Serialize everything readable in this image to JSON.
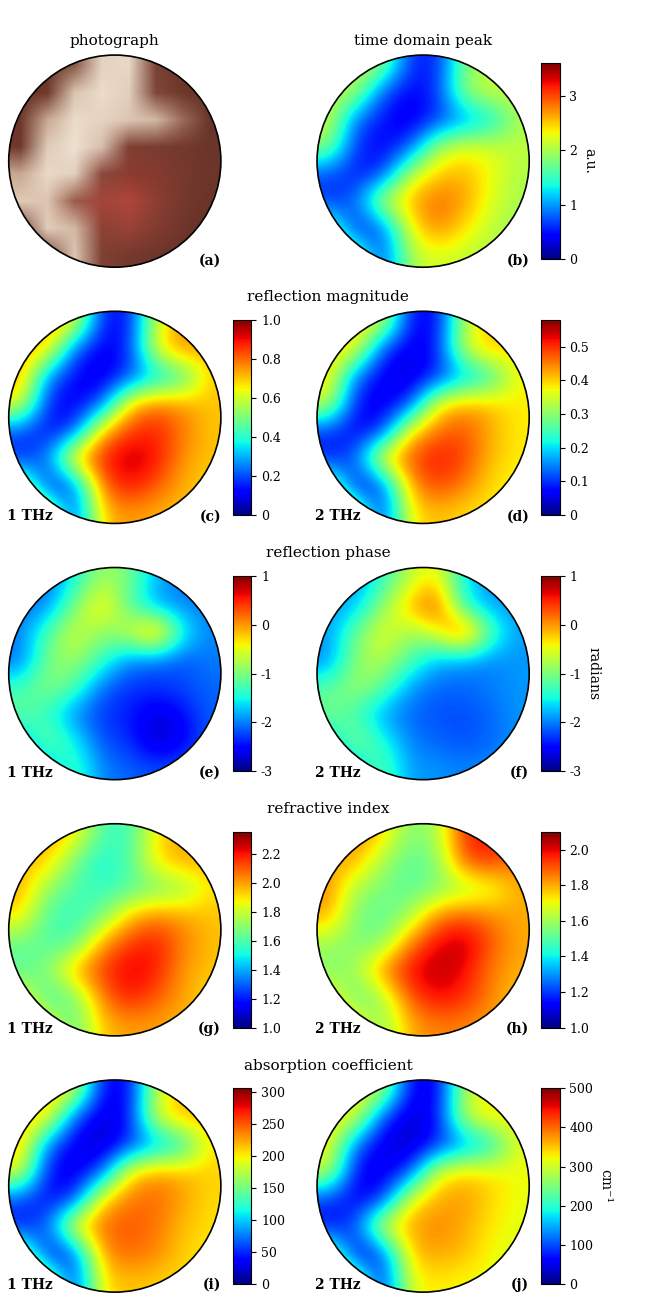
{
  "chart_data": [
    {
      "type": "image",
      "title": "photograph",
      "panel": "(a)",
      "cells": [
        [
          "#5a2e24",
          "#6b3529",
          "#8a5a48",
          "#e4d3c0",
          "#e8d8c6",
          "#7a4234",
          "#6a3428",
          "#5c2f25"
        ],
        [
          "#633226",
          "#70392b",
          "#d9c4b0",
          "#ecdccb",
          "#e2cfbc",
          "#80473a",
          "#6e3729",
          "#61302a"
        ],
        [
          "#6d362a",
          "#c9a892",
          "#eadbc9",
          "#e6d3c1",
          "#dcc6b3",
          "#d2b8a4",
          "#9a6a58",
          "#68332a"
        ],
        [
          "#70392c",
          "#e0ccb8",
          "#eee0d0",
          "#d8bfae",
          "#7e4032",
          "#7a3d30",
          "#73392d",
          "#6a352a"
        ],
        [
          "#c8a890",
          "#ead9c7",
          "#e3cfbd",
          "#8a4a3b",
          "#8e3a30",
          "#853a2f",
          "#76392d",
          "#6c362a"
        ],
        [
          "#e0cbb7",
          "#dcc5b1",
          "#9a5c4a",
          "#a4443a",
          "#b0463a",
          "#8e3e32",
          "#75382c",
          "#6a3429"
        ],
        [
          "#7c4638",
          "#e2cdb9",
          "#d3b9a4",
          "#8c4234",
          "#9a4236",
          "#823c30",
          "#70362b",
          "#633027"
        ],
        [
          "#5e2f25",
          "#7a4436",
          "#dcc7b3",
          "#7e4133",
          "#77392d",
          "#6e352a",
          "#673228",
          "#5c2d24"
        ]
      ]
    },
    {
      "type": "heatmap",
      "title": "time domain peak",
      "panel": "(b)",
      "colorbar_range": [
        0,
        3.6
      ],
      "colorbar_ticks": [
        0,
        1,
        2,
        3
      ],
      "colorbar_label": "a.u.",
      "cells": [
        [
          2.0,
          2.2,
          1.9,
          0.6,
          0.5,
          1.8,
          2.1,
          2.0
        ],
        [
          2.1,
          2.0,
          0.7,
          0.4,
          0.6,
          1.9,
          2.2,
          2.1
        ],
        [
          2.2,
          0.8,
          0.5,
          0.3,
          0.6,
          0.9,
          1.2,
          2.0
        ],
        [
          1.9,
          0.6,
          0.4,
          0.7,
          2.0,
          2.3,
          2.2,
          2.1
        ],
        [
          0.7,
          0.5,
          0.6,
          2.1,
          2.5,
          2.6,
          2.3,
          2.0
        ],
        [
          0.6,
          0.8,
          2.2,
          2.6,
          2.9,
          2.7,
          2.2,
          2.0
        ],
        [
          1.8,
          0.5,
          0.7,
          2.3,
          2.8,
          2.4,
          2.1,
          1.9
        ],
        [
          2.0,
          1.9,
          0.6,
          2.0,
          2.2,
          2.1,
          2.0,
          2.0
        ]
      ]
    },
    {
      "type": "heatmap",
      "title": "reflection magnitude",
      "panel": "(c)",
      "frequency": "1 THz",
      "colorbar_range": [
        0,
        1.0
      ],
      "colorbar_ticks": [
        0,
        0.2,
        0.4,
        0.6,
        0.8,
        1.0
      ],
      "cells": [
        [
          0.7,
          0.75,
          0.65,
          0.15,
          0.12,
          0.6,
          0.75,
          0.7
        ],
        [
          0.72,
          0.7,
          0.2,
          0.1,
          0.15,
          0.65,
          0.78,
          0.72
        ],
        [
          0.75,
          0.25,
          0.12,
          0.08,
          0.18,
          0.3,
          0.4,
          0.7
        ],
        [
          0.65,
          0.15,
          0.1,
          0.2,
          0.7,
          0.8,
          0.75,
          0.7
        ],
        [
          0.2,
          0.12,
          0.18,
          0.72,
          0.85,
          0.88,
          0.78,
          0.7
        ],
        [
          0.15,
          0.25,
          0.75,
          0.88,
          0.95,
          0.9,
          0.75,
          0.7
        ],
        [
          0.6,
          0.12,
          0.2,
          0.8,
          0.9,
          0.82,
          0.72,
          0.68
        ],
        [
          0.7,
          0.65,
          0.15,
          0.7,
          0.75,
          0.72,
          0.7,
          0.7
        ]
      ]
    },
    {
      "type": "heatmap",
      "panel": "(d)",
      "frequency": "2 THz",
      "colorbar_range": [
        0,
        0.58
      ],
      "colorbar_ticks": [
        0,
        0.1,
        0.2,
        0.3,
        0.4,
        0.5
      ],
      "cells": [
        [
          0.38,
          0.4,
          0.35,
          0.08,
          0.06,
          0.33,
          0.41,
          0.38
        ],
        [
          0.39,
          0.38,
          0.1,
          0.05,
          0.08,
          0.35,
          0.42,
          0.39
        ],
        [
          0.4,
          0.13,
          0.06,
          0.04,
          0.09,
          0.16,
          0.22,
          0.38
        ],
        [
          0.35,
          0.08,
          0.05,
          0.1,
          0.38,
          0.43,
          0.41,
          0.38
        ],
        [
          0.1,
          0.06,
          0.09,
          0.39,
          0.46,
          0.48,
          0.42,
          0.38
        ],
        [
          0.08,
          0.13,
          0.41,
          0.48,
          0.52,
          0.49,
          0.41,
          0.38
        ],
        [
          0.33,
          0.06,
          0.1,
          0.43,
          0.49,
          0.45,
          0.39,
          0.37
        ],
        [
          0.38,
          0.35,
          0.08,
          0.38,
          0.41,
          0.39,
          0.38,
          0.38
        ]
      ]
    },
    {
      "type": "heatmap",
      "title": "reflection phase",
      "panel": "(e)",
      "frequency": "1 THz",
      "colorbar_range": [
        -3,
        1
      ],
      "colorbar_ticks": [
        1,
        0,
        -1,
        -2,
        -3
      ],
      "cells": [
        [
          -2.0,
          -2.1,
          -1.5,
          -0.8,
          -1.0,
          -1.8,
          -2.0,
          -2.1
        ],
        [
          -2.1,
          -2.0,
          -1.0,
          -0.2,
          -1.2,
          -1.9,
          -2.0,
          -2.0
        ],
        [
          -2.0,
          -1.2,
          -0.5,
          -1.0,
          -0.6,
          0.3,
          -1.5,
          -2.0
        ],
        [
          -2.1,
          -1.0,
          -0.8,
          -1.3,
          -2.0,
          -2.1,
          -2.2,
          -2.0
        ],
        [
          -1.3,
          -0.9,
          -1.2,
          -2.1,
          -2.3,
          -2.3,
          -2.2,
          -2.1
        ],
        [
          -1.1,
          -1.4,
          -2.0,
          -2.3,
          -2.4,
          -2.7,
          -2.5,
          -2.1
        ],
        [
          -1.8,
          -1.0,
          -1.5,
          -2.2,
          -2.3,
          -2.8,
          -2.6,
          -2.1
        ],
        [
          -2.0,
          -1.9,
          -1.2,
          -2.0,
          -2.1,
          -2.2,
          -2.1,
          -2.0
        ]
      ]
    },
    {
      "type": "heatmap",
      "panel": "(f)",
      "frequency": "2 THz",
      "colorbar_range": [
        -3,
        1
      ],
      "colorbar_ticks": [
        1,
        0,
        -1,
        -2,
        -3
      ],
      "colorbar_label": "radians",
      "cells": [
        [
          -1.9,
          -1.9,
          -1.4,
          -0.7,
          -0.3,
          -1.6,
          -1.9,
          -1.9
        ],
        [
          -1.9,
          -1.8,
          -0.9,
          -0.1,
          0.4,
          -1.5,
          -1.9,
          -1.9
        ],
        [
          -1.9,
          -1.1,
          -0.4,
          -0.9,
          -0.5,
          0.5,
          -1.2,
          -1.9
        ],
        [
          -2.0,
          -0.9,
          -0.7,
          -1.2,
          -1.8,
          -1.9,
          -2.0,
          -1.9
        ],
        [
          -1.2,
          -0.8,
          -1.1,
          -1.9,
          -2.1,
          -2.1,
          -2.0,
          -1.9
        ],
        [
          -1.0,
          -1.3,
          -1.9,
          -2.1,
          -2.2,
          -2.2,
          -2.1,
          -1.9
        ],
        [
          -1.7,
          -0.9,
          -1.4,
          -2.0,
          -2.1,
          -2.2,
          -2.1,
          -1.9
        ],
        [
          -1.9,
          -1.8,
          -1.1,
          -1.9,
          -1.9,
          -2.0,
          -1.9,
          -1.9
        ]
      ]
    },
    {
      "type": "heatmap",
      "title": "refractive index",
      "panel": "(g)",
      "frequency": "1 THz",
      "colorbar_range": [
        1.0,
        2.35
      ],
      "colorbar_ticks": [
        1.0,
        1.2,
        1.4,
        1.6,
        1.8,
        2.0,
        2.2
      ],
      "cells": [
        [
          1.95,
          2.0,
          1.9,
          1.6,
          1.55,
          1.9,
          2.0,
          1.95
        ],
        [
          1.95,
          1.95,
          1.65,
          1.5,
          1.6,
          1.9,
          2.0,
          1.95
        ],
        [
          2.0,
          1.7,
          1.6,
          1.55,
          1.6,
          1.65,
          1.7,
          1.9
        ],
        [
          1.9,
          1.6,
          1.55,
          1.65,
          1.95,
          2.05,
          2.0,
          1.95
        ],
        [
          1.65,
          1.6,
          1.6,
          2.0,
          2.15,
          2.2,
          2.05,
          1.95
        ],
        [
          1.6,
          1.7,
          2.0,
          2.15,
          2.25,
          2.2,
          2.0,
          1.95
        ],
        [
          1.9,
          1.55,
          1.65,
          2.05,
          2.2,
          2.1,
          2.0,
          1.9
        ],
        [
          1.95,
          1.9,
          1.6,
          1.95,
          2.0,
          2.0,
          1.95,
          1.95
        ]
      ]
    },
    {
      "type": "heatmap",
      "panel": "(h)",
      "frequency": "2 THz",
      "colorbar_range": [
        1.0,
        2.1
      ],
      "colorbar_ticks": [
        1.0,
        1.2,
        1.4,
        1.6,
        1.8,
        2.0
      ],
      "cells": [
        [
          1.8,
          1.85,
          1.75,
          1.55,
          1.6,
          1.95,
          2.0,
          1.85
        ],
        [
          1.8,
          1.8,
          1.6,
          1.5,
          1.55,
          1.9,
          1.95,
          1.85
        ],
        [
          1.85,
          1.6,
          1.55,
          1.5,
          1.55,
          1.6,
          1.65,
          1.8
        ],
        [
          1.8,
          1.55,
          1.5,
          1.6,
          1.85,
          1.9,
          1.85,
          1.8
        ],
        [
          1.6,
          1.55,
          1.55,
          1.85,
          2.0,
          2.05,
          1.9,
          1.8
        ],
        [
          1.55,
          1.6,
          1.85,
          2.0,
          2.05,
          2.0,
          1.85,
          1.8
        ],
        [
          1.75,
          1.5,
          1.6,
          1.9,
          2.0,
          1.95,
          1.85,
          1.75
        ],
        [
          1.8,
          1.75,
          1.55,
          1.8,
          1.85,
          1.85,
          1.8,
          1.8
        ]
      ]
    },
    {
      "type": "heatmap",
      "title": "absorption coefficient",
      "panel": "(i)",
      "frequency": "1 THz",
      "colorbar_range": [
        0,
        305
      ],
      "colorbar_ticks": [
        0,
        50,
        100,
        150,
        200,
        250,
        300
      ],
      "cells": [
        [
          210,
          220,
          190,
          40,
          30,
          180,
          215,
          210
        ],
        [
          215,
          205,
          60,
          20,
          40,
          190,
          225,
          215
        ],
        [
          220,
          70,
          30,
          15,
          50,
          80,
          110,
          205
        ],
        [
          195,
          40,
          25,
          60,
          205,
          230,
          220,
          210
        ],
        [
          60,
          35,
          50,
          210,
          240,
          245,
          225,
          205
        ],
        [
          40,
          70,
          215,
          245,
          250,
          240,
          215,
          205
        ],
        [
          180,
          30,
          55,
          230,
          245,
          235,
          210,
          200
        ],
        [
          210,
          190,
          40,
          205,
          215,
          210,
          205,
          205
        ]
      ]
    },
    {
      "type": "heatmap",
      "panel": "(j)",
      "frequency": "2 THz",
      "colorbar_range": [
        0,
        500
      ],
      "colorbar_ticks": [
        0,
        100,
        200,
        300,
        400,
        500
      ],
      "colorbar_label": "cm⁻¹",
      "cells": [
        [
          320,
          335,
          290,
          60,
          45,
          280,
          330,
          320
        ],
        [
          330,
          315,
          90,
          30,
          60,
          295,
          340,
          325
        ],
        [
          335,
          110,
          45,
          25,
          75,
          120,
          170,
          315
        ],
        [
          300,
          60,
          40,
          90,
          315,
          350,
          335,
          320
        ],
        [
          90,
          50,
          75,
          320,
          365,
          375,
          340,
          315
        ],
        [
          60,
          105,
          330,
          370,
          385,
          365,
          330,
          315
        ],
        [
          280,
          45,
          85,
          350,
          370,
          355,
          320,
          305
        ],
        [
          320,
          290,
          60,
          315,
          330,
          320,
          315,
          315
        ]
      ]
    }
  ]
}
